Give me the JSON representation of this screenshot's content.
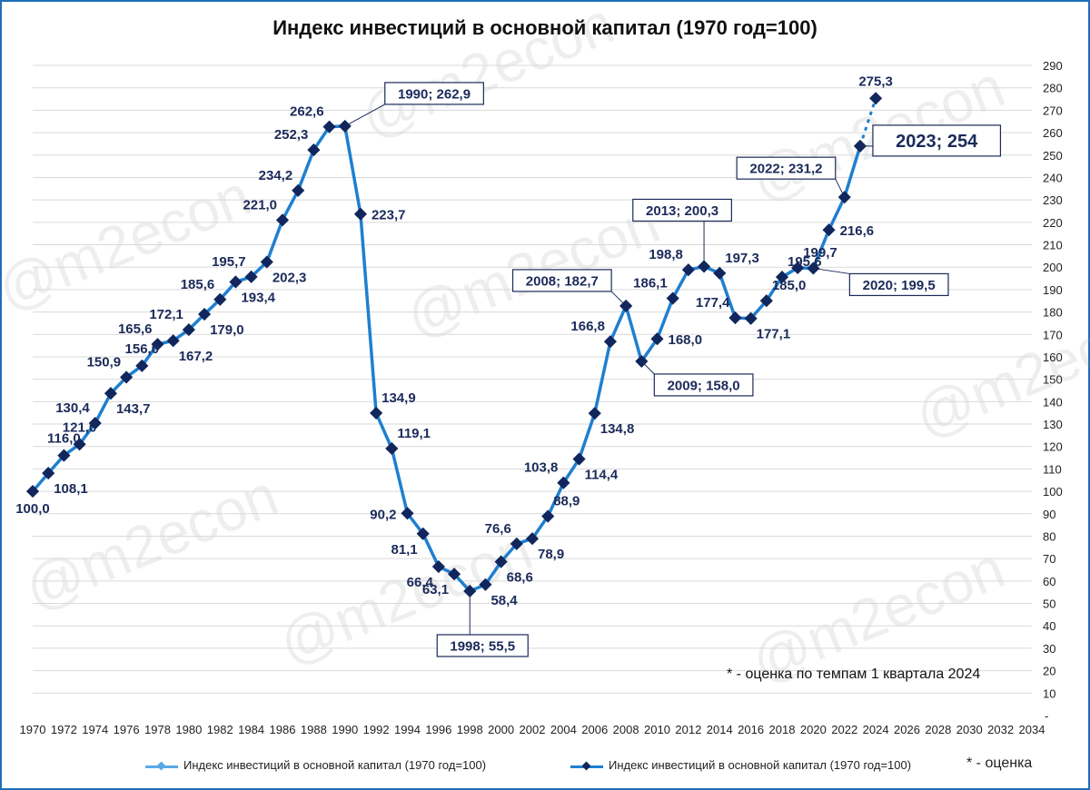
{
  "watermark": "@m2econ",
  "chart_data": {
    "type": "line",
    "title": "Индекс инвестиций в основной капитал (1970 год=100)",
    "xlabel": "",
    "ylabel": "",
    "xlim": [
      1970,
      2034
    ],
    "ylim": [
      0,
      290
    ],
    "x_ticks": [
      1970,
      1972,
      1974,
      1976,
      1978,
      1980,
      1982,
      1984,
      1986,
      1988,
      1990,
      1992,
      1994,
      1996,
      1998,
      2000,
      2002,
      2004,
      2006,
      2008,
      2010,
      2012,
      2014,
      2016,
      2018,
      2020,
      2022,
      2024,
      2026,
      2028,
      2030,
      2032,
      2034
    ],
    "y_ticks": [
      10,
      20,
      30,
      40,
      50,
      60,
      70,
      80,
      90,
      100,
      110,
      120,
      130,
      140,
      150,
      160,
      170,
      180,
      190,
      200,
      210,
      220,
      230,
      240,
      250,
      260,
      270,
      280,
      290
    ],
    "y_zero_label": "-",
    "series": [
      {
        "name": "Индекс инвестиций в основной капитал (1970 год=100)",
        "color": "#1f7fd0",
        "x": [
          1970,
          1971,
          1972,
          1973,
          1974,
          1975,
          1976,
          1977,
          1978,
          1979,
          1980,
          1981,
          1982,
          1983,
          1984,
          1985,
          1986,
          1987,
          1988,
          1989,
          1990,
          1991,
          1992,
          1993,
          1994,
          1995,
          1996,
          1997,
          1998,
          1999,
          2000,
          2001,
          2002,
          2003,
          2004,
          2005,
          2006,
          2007,
          2008,
          2009,
          2010,
          2011,
          2012,
          2013,
          2014,
          2015,
          2016,
          2017,
          2018,
          2019,
          2020,
          2021,
          2022,
          2023
        ],
        "values": [
          100.0,
          108.1,
          116.0,
          121.0,
          130.4,
          143.7,
          150.9,
          156.0,
          165.6,
          167.2,
          172.1,
          179.0,
          185.6,
          193.4,
          195.7,
          202.3,
          221.0,
          234.2,
          252.3,
          262.6,
          262.9,
          223.7,
          134.9,
          119.1,
          90.2,
          81.1,
          66.4,
          63.1,
          55.5,
          58.4,
          68.6,
          76.6,
          78.9,
          88.9,
          103.8,
          114.4,
          134.8,
          166.8,
          182.7,
          158.0,
          168.0,
          186.1,
          198.8,
          200.3,
          197.3,
          177.4,
          177.1,
          185.0,
          195.6,
          199.7,
          199.5,
          216.6,
          231.2,
          254.0
        ]
      },
      {
        "name": "Индекс инвестиций в основной капитал (1970 год=100)",
        "color": "#1f7fd0",
        "dashed": true,
        "x": [
          2023,
          2024
        ],
        "values": [
          254.0,
          275.3
        ]
      }
    ],
    "labels": [
      {
        "x": 1970,
        "y": 100.0,
        "text": "100,0",
        "pos": "below"
      },
      {
        "x": 1971,
        "y": 108.1,
        "text": "108,1",
        "pos": "below-right"
      },
      {
        "x": 1972,
        "y": 116.0,
        "text": "116,0",
        "pos": "above"
      },
      {
        "x": 1973,
        "y": 121.0,
        "text": "121,0",
        "pos": "above"
      },
      {
        "x": 1974,
        "y": 130.4,
        "text": "130,4",
        "pos": "above-left"
      },
      {
        "x": 1975,
        "y": 143.7,
        "text": "143,7",
        "pos": "below-right"
      },
      {
        "x": 1976,
        "y": 150.9,
        "text": "150,9",
        "pos": "above-left"
      },
      {
        "x": 1977,
        "y": 156.0,
        "text": "156,0",
        "pos": "above"
      },
      {
        "x": 1978,
        "y": 165.6,
        "text": "165,6",
        "pos": "above-left"
      },
      {
        "x": 1979,
        "y": 167.2,
        "text": "167,2",
        "pos": "below-right"
      },
      {
        "x": 1980,
        "y": 172.1,
        "text": "172,1",
        "pos": "above-left"
      },
      {
        "x": 1981,
        "y": 179.0,
        "text": "179,0",
        "pos": "below-right"
      },
      {
        "x": 1982,
        "y": 185.6,
        "text": "185,6",
        "pos": "above-left"
      },
      {
        "x": 1983,
        "y": 193.4,
        "text": "193,4",
        "pos": "below-right"
      },
      {
        "x": 1984,
        "y": 195.7,
        "text": "195,7",
        "pos": "above-left"
      },
      {
        "x": 1985,
        "y": 202.3,
        "text": "202,3",
        "pos": "below-right"
      },
      {
        "x": 1986,
        "y": 221.0,
        "text": "221,0",
        "pos": "above-left"
      },
      {
        "x": 1987,
        "y": 234.2,
        "text": "234,2",
        "pos": "above-left"
      },
      {
        "x": 1988,
        "y": 252.3,
        "text": "252,3",
        "pos": "above-left"
      },
      {
        "x": 1989,
        "y": 262.6,
        "text": "262,6",
        "pos": "above-left"
      },
      {
        "x": 1991,
        "y": 223.7,
        "text": "223,7",
        "pos": "right"
      },
      {
        "x": 1992,
        "y": 134.9,
        "text": "134,9",
        "pos": "above-right"
      },
      {
        "x": 1993,
        "y": 119.1,
        "text": "119,1",
        "pos": "above-right"
      },
      {
        "x": 1994,
        "y": 90.2,
        "text": "90,2",
        "pos": "left"
      },
      {
        "x": 1995,
        "y": 81.1,
        "text": "81,1",
        "pos": "below-left"
      },
      {
        "x": 1996,
        "y": 66.4,
        "text": "66,4",
        "pos": "below-left"
      },
      {
        "x": 1997,
        "y": 63.1,
        "text": "63,1",
        "pos": "below-left"
      },
      {
        "x": 1999,
        "y": 58.4,
        "text": "58,4",
        "pos": "below-right"
      },
      {
        "x": 2000,
        "y": 68.6,
        "text": "68,6",
        "pos": "below-right"
      },
      {
        "x": 2001,
        "y": 76.6,
        "text": "76,6",
        "pos": "above-left"
      },
      {
        "x": 2002,
        "y": 78.9,
        "text": "78,9",
        "pos": "below-right"
      },
      {
        "x": 2003,
        "y": 88.9,
        "text": "88,9",
        "pos": "above-right"
      },
      {
        "x": 2004,
        "y": 103.8,
        "text": "103,8",
        "pos": "above-left"
      },
      {
        "x": 2005,
        "y": 114.4,
        "text": "114,4",
        "pos": "below-right"
      },
      {
        "x": 2006,
        "y": 134.8,
        "text": "134,8",
        "pos": "below-right"
      },
      {
        "x": 2007,
        "y": 166.8,
        "text": "166,8",
        "pos": "above-left"
      },
      {
        "x": 2010,
        "y": 168.0,
        "text": "168,0",
        "pos": "right"
      },
      {
        "x": 2011,
        "y": 186.1,
        "text": "186,1",
        "pos": "above-left"
      },
      {
        "x": 2012,
        "y": 198.8,
        "text": "198,8",
        "pos": "above-left"
      },
      {
        "x": 2014,
        "y": 197.3,
        "text": "197,3",
        "pos": "above-right"
      },
      {
        "x": 2015,
        "y": 177.4,
        "text": "177,4",
        "pos": "above-left"
      },
      {
        "x": 2016,
        "y": 177.1,
        "text": "177,1",
        "pos": "below-right"
      },
      {
        "x": 2017,
        "y": 185.0,
        "text": "185,0",
        "pos": "above-right"
      },
      {
        "x": 2018,
        "y": 195.6,
        "text": "195,6",
        "pos": "above-right"
      },
      {
        "x": 2019,
        "y": 199.7,
        "text": "199,7",
        "pos": "above-right"
      },
      {
        "x": 2021,
        "y": 216.6,
        "text": "216,6",
        "pos": "right"
      },
      {
        "x": 2024,
        "y": 275.3,
        "text": "275,3",
        "pos": "above"
      }
    ],
    "callouts": [
      {
        "x": 1990,
        "y": 262.9,
        "text": "1990; 262,9"
      },
      {
        "x": 1998,
        "y": 55.5,
        "text": "1998; 55,5"
      },
      {
        "x": 2008,
        "y": 182.7,
        "text": "2008; 182,7"
      },
      {
        "x": 2009,
        "y": 158.0,
        "text": "2009; 158,0"
      },
      {
        "x": 2013,
        "y": 200.3,
        "text": "2013; 200,3"
      },
      {
        "x": 2020,
        "y": 199.5,
        "text": "2020; 199,5"
      },
      {
        "x": 2022,
        "y": 231.2,
        "text": "2022; 231,2"
      },
      {
        "x": 2023,
        "y": 254.0,
        "text": "2023;   254",
        "emphasis": true
      }
    ],
    "note": "* - оценка по темпам 1 квартала 2024",
    "legend": {
      "position": "bottom",
      "items": [
        {
          "label": "Индекс инвестиций в основной капитал (1970 год=100)",
          "style": "line-light"
        },
        {
          "label": "Индекс инвестиций в основной капитал (1970 год=100)",
          "style": "line-dark-marker"
        }
      ],
      "suffix": "* - оценка"
    }
  }
}
